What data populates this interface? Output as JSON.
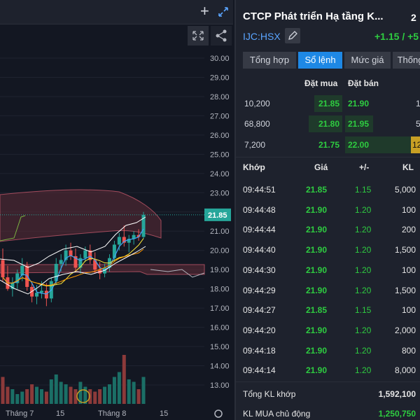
{
  "chart_toolbar": {
    "add_icon": "plus-icon",
    "expand_icon": "expand-icon",
    "fullscreen_icon": "fullscreen-icon",
    "share_icon": "share-icon"
  },
  "chart_data": {
    "type": "candlestick",
    "y_ticks": [
      "30.00",
      "29.00",
      "28.00",
      "27.00",
      "26.00",
      "25.00",
      "24.00",
      "23.00",
      "22.00",
      "21.00",
      "20.00",
      "19.00",
      "18.00",
      "17.00",
      "16.00",
      "15.00",
      "14.00",
      "13.00"
    ],
    "ylim": [
      12.5,
      30.5
    ],
    "x_labels": [
      "Tháng 7",
      "15",
      "Tháng 8",
      "15"
    ],
    "last_price_label": "21.85",
    "last_price": 21.85,
    "candles": [
      {
        "o": 19.5,
        "h": 20.1,
        "l": 18.4,
        "c": 18.6
      },
      {
        "o": 18.6,
        "h": 19.2,
        "l": 17.9,
        "c": 18.0
      },
      {
        "o": 18.0,
        "h": 18.6,
        "l": 17.6,
        "c": 18.3
      },
      {
        "o": 18.3,
        "h": 19.0,
        "l": 18.0,
        "c": 18.8
      },
      {
        "o": 18.7,
        "h": 19.6,
        "l": 18.4,
        "c": 19.2
      },
      {
        "o": 19.2,
        "h": 19.4,
        "l": 17.9,
        "c": 18.1
      },
      {
        "o": 18.1,
        "h": 18.3,
        "l": 17.3,
        "c": 17.6
      },
      {
        "o": 17.6,
        "h": 18.2,
        "l": 17.2,
        "c": 17.8
      },
      {
        "o": 17.8,
        "h": 18.4,
        "l": 17.5,
        "c": 17.9
      },
      {
        "o": 17.9,
        "h": 18.3,
        "l": 17.1,
        "c": 17.5
      },
      {
        "o": 17.5,
        "h": 18.6,
        "l": 17.3,
        "c": 18.4
      },
      {
        "o": 18.4,
        "h": 19.6,
        "l": 18.2,
        "c": 19.3
      },
      {
        "o": 19.3,
        "h": 19.8,
        "l": 18.9,
        "c": 19.5
      },
      {
        "o": 19.5,
        "h": 20.3,
        "l": 19.2,
        "c": 20.0
      },
      {
        "o": 20.0,
        "h": 20.4,
        "l": 19.5,
        "c": 19.7
      },
      {
        "o": 19.7,
        "h": 20.1,
        "l": 18.9,
        "c": 19.1
      },
      {
        "o": 19.1,
        "h": 19.8,
        "l": 18.8,
        "c": 19.6
      },
      {
        "o": 19.6,
        "h": 20.2,
        "l": 19.4,
        "c": 20.0
      },
      {
        "o": 20.0,
        "h": 20.3,
        "l": 19.3,
        "c": 19.5
      },
      {
        "o": 19.5,
        "h": 19.9,
        "l": 18.8,
        "c": 19.0
      },
      {
        "o": 19.0,
        "h": 19.4,
        "l": 18.5,
        "c": 18.8
      },
      {
        "o": 18.8,
        "h": 19.3,
        "l": 18.6,
        "c": 19.1
      },
      {
        "o": 19.1,
        "h": 19.8,
        "l": 18.9,
        "c": 19.6
      },
      {
        "o": 19.6,
        "h": 20.5,
        "l": 19.4,
        "c": 20.3
      },
      {
        "o": 20.3,
        "h": 20.9,
        "l": 20.0,
        "c": 20.7
      },
      {
        "o": 20.7,
        "h": 21.3,
        "l": 20.2,
        "c": 20.4
      },
      {
        "o": 20.4,
        "h": 20.8,
        "l": 19.9,
        "c": 20.6
      },
      {
        "o": 20.6,
        "h": 21.0,
        "l": 20.3,
        "c": 20.8
      },
      {
        "o": 20.8,
        "h": 21.1,
        "l": 20.5,
        "c": 20.7
      },
      {
        "o": 20.7,
        "h": 22.0,
        "l": 20.6,
        "c": 21.85
      }
    ],
    "volume": [
      0.55,
      0.35,
      0.3,
      0.2,
      0.25,
      0.3,
      0.4,
      0.35,
      0.3,
      0.25,
      0.5,
      0.6,
      0.45,
      0.4,
      0.35,
      0.3,
      0.45,
      0.35,
      0.3,
      0.25,
      0.3,
      0.35,
      0.4,
      0.55,
      0.65,
      1.0,
      0.5,
      0.45,
      0.3,
      0.55
    ]
  },
  "quote": {
    "title": "CTCP Phát triển Hạ tầng K...",
    "price_top": "2",
    "ticker": "IJC:HSX",
    "edit_icon": "pencil-icon",
    "change": "+1.15 / +5"
  },
  "tabs": [
    {
      "label": "Tổng hợp"
    },
    {
      "label": "Sổ lệnh"
    },
    {
      "label": "Mức giá"
    },
    {
      "label": "Thống"
    }
  ],
  "orderbook": {
    "head_buy": "Đặt mua",
    "head_sell": "Đặt bán",
    "rows": [
      {
        "bid_vol": "10,200",
        "bid": "21.85",
        "ask": "21.90",
        "ask_vol": "1"
      },
      {
        "bid_vol": "68,800",
        "bid": "21.80",
        "ask": "21.95",
        "ask_vol": "5"
      },
      {
        "bid_vol": "7,200",
        "bid": "21.75",
        "ask": "22.00",
        "ask_vol": "12"
      }
    ]
  },
  "trades": {
    "head": {
      "time": "Khớp",
      "price": "Giá",
      "chg": "+/-",
      "vol": "KL"
    },
    "rows": [
      {
        "time": "09:44:51",
        "price": "21.85",
        "chg": "1.15",
        "vol": "5,000"
      },
      {
        "time": "09:44:48",
        "price": "21.90",
        "chg": "1.20",
        "vol": "100"
      },
      {
        "time": "09:44:44",
        "price": "21.90",
        "chg": "1.20",
        "vol": "200"
      },
      {
        "time": "09:44:40",
        "price": "21.90",
        "chg": "1.20",
        "vol": "1,500"
      },
      {
        "time": "09:44:30",
        "price": "21.90",
        "chg": "1.20",
        "vol": "100"
      },
      {
        "time": "09:44:29",
        "price": "21.90",
        "chg": "1.20",
        "vol": "1,500"
      },
      {
        "time": "09:44:27",
        "price": "21.85",
        "chg": "1.15",
        "vol": "100"
      },
      {
        "time": "09:44:20",
        "price": "21.90",
        "chg": "1.20",
        "vol": "2,000"
      },
      {
        "time": "09:44:18",
        "price": "21.90",
        "chg": "1.20",
        "vol": "800"
      },
      {
        "time": "09:44:14",
        "price": "21.90",
        "chg": "1.20",
        "vol": "8,000"
      }
    ]
  },
  "summary": {
    "total_label": "Tổng KL khớp",
    "total_val": "1,592,100",
    "buy_label": "KL MUA chủ động",
    "buy_val": "1,250,750"
  },
  "colors": {
    "up": "#26a69a",
    "down": "#ef5350",
    "green_text": "#2ecc40",
    "accent": "#1e88e5",
    "cloud": "#7b3b4a"
  }
}
